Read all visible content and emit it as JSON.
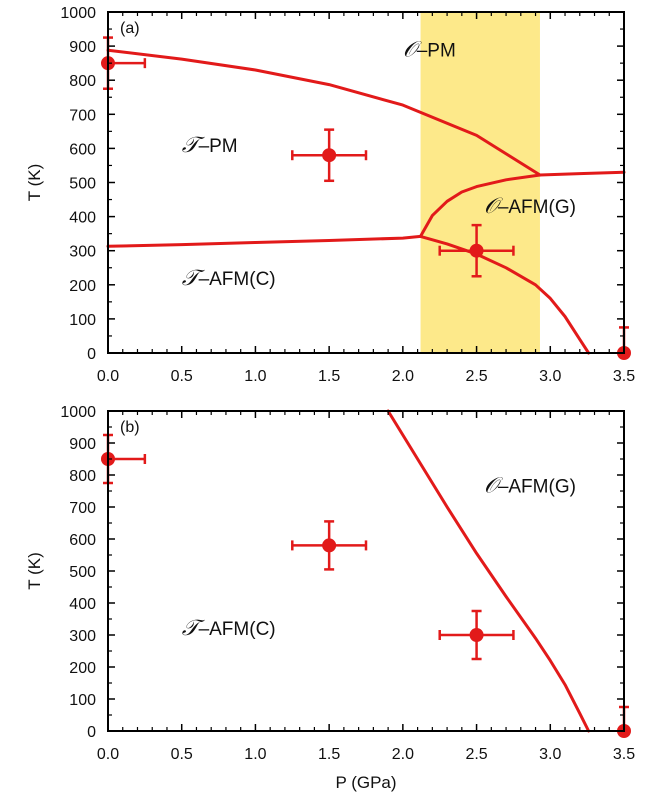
{
  "chart_data": [
    {
      "type": "line",
      "panel_label": "(a)",
      "xlabel": "",
      "ylabel": "T (K)",
      "xlim": [
        0,
        3.5
      ],
      "ylim": [
        0,
        1000
      ],
      "xticks": [
        "0.0",
        "0.5",
        "1.0",
        "1.5",
        "2.0",
        "2.5",
        "3.0",
        "3.5"
      ],
      "yticks": [
        "0",
        "100",
        "200",
        "300",
        "400",
        "500",
        "600",
        "700",
        "800",
        "900",
        "1000"
      ],
      "shaded_band": {
        "x": [
          2.12,
          2.93
        ],
        "color": "#fde98a"
      },
      "line_color": "#e21a1a",
      "series": [
        {
          "x": [
            0,
            0.5,
            1.0,
            1.5,
            2.0,
            2.5,
            2.93
          ],
          "y": [
            888,
            862,
            830,
            787,
            727,
            638,
            522
          ]
        },
        {
          "x": [
            2.93,
            3.2,
            3.5
          ],
          "y": [
            522,
            526,
            530
          ]
        },
        {
          "x": [
            0,
            0.5,
            1.0,
            1.5,
            2.0,
            2.12
          ],
          "y": [
            313,
            318,
            324,
            330,
            337,
            342
          ]
        },
        {
          "x": [
            2.12,
            2.2,
            2.3,
            2.4,
            2.5,
            2.7,
            2.93
          ],
          "y": [
            342,
            403,
            445,
            472,
            488,
            508,
            522
          ]
        },
        {
          "x": [
            2.12,
            2.3,
            2.5,
            2.7,
            2.9,
            3.0,
            3.1,
            3.2,
            3.26
          ],
          "y": [
            342,
            320,
            290,
            250,
            200,
            160,
            107,
            40,
            0
          ]
        }
      ],
      "points": [
        {
          "x": 0.0,
          "y": 850,
          "xerr": 0.25,
          "yerr": 75
        },
        {
          "x": 1.5,
          "y": 580,
          "xerr": 0.25,
          "yerr": 75
        },
        {
          "x": 2.5,
          "y": 300,
          "xerr": 0.25,
          "yerr": 75
        },
        {
          "x": 3.5,
          "y": 0,
          "xerr": 0,
          "yerr": 75
        }
      ],
      "annotations": [
        {
          "id": "o-pm",
          "script": "𝒪",
          "text": "–PM",
          "x": 2.0,
          "y": 870
        },
        {
          "id": "t-pm",
          "script": "𝒯",
          "text": "–PM",
          "x": 0.5,
          "y": 590
        },
        {
          "id": "o-afm-g",
          "script": "𝒪",
          "text": "–AFM(G)",
          "x": 2.55,
          "y": 410
        },
        {
          "id": "t-afm-c",
          "script": "𝒯",
          "text": "–AFM(C)",
          "x": 0.5,
          "y": 200
        }
      ]
    },
    {
      "type": "line",
      "panel_label": "(b)",
      "xlabel": "P (GPa)",
      "ylabel": "T (K)",
      "xlim": [
        0,
        3.5
      ],
      "ylim": [
        0,
        1000
      ],
      "xticks": [
        "0.0",
        "0.5",
        "1.0",
        "1.5",
        "2.0",
        "2.5",
        "3.0",
        "3.5"
      ],
      "yticks": [
        "0",
        "100",
        "200",
        "300",
        "400",
        "500",
        "600",
        "700",
        "800",
        "900",
        "1000"
      ],
      "line_color": "#e21a1a",
      "series": [
        {
          "x": [
            1.9,
            2.1,
            2.3,
            2.5,
            2.7,
            2.9,
            3.0,
            3.1,
            3.2,
            3.26
          ],
          "y": [
            1000,
            850,
            700,
            555,
            420,
            290,
            220,
            145,
            55,
            0
          ]
        }
      ],
      "points": [
        {
          "x": 0.0,
          "y": 850,
          "xerr": 0.25,
          "yerr": 75
        },
        {
          "x": 1.5,
          "y": 580,
          "xerr": 0.25,
          "yerr": 75
        },
        {
          "x": 2.5,
          "y": 300,
          "xerr": 0.25,
          "yerr": 75
        },
        {
          "x": 3.5,
          "y": 0,
          "xerr": 0,
          "yerr": 75
        }
      ],
      "annotations": [
        {
          "id": "o-afm-g",
          "script": "𝒪",
          "text": "–AFM(G)",
          "x": 2.55,
          "y": 745
        },
        {
          "id": "t-afm-c",
          "script": "𝒯",
          "text": "–AFM(C)",
          "x": 0.5,
          "y": 300
        }
      ]
    }
  ]
}
